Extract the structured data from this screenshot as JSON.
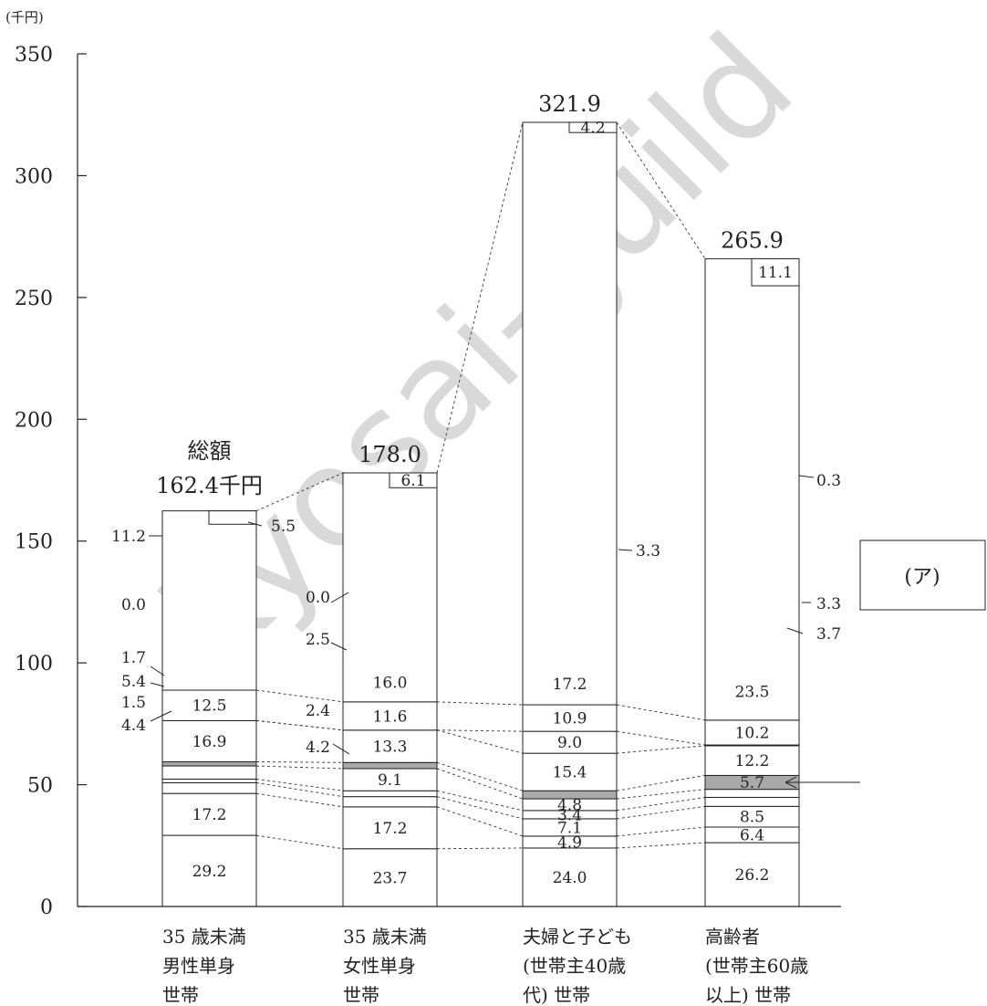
{
  "chart_data": {
    "type": "bar",
    "stacked": true,
    "y_unit_label": "(千円)",
    "ylim": [
      0,
      350
    ],
    "yticks": [
      0,
      50,
      100,
      150,
      200,
      250,
      300,
      350
    ],
    "grid": false,
    "categories": [
      [
        "35 歳未満",
        "男性単身",
        "世帯"
      ],
      [
        "35 歳未満",
        "女性単身",
        "世帯"
      ],
      [
        "夫婦と子ども",
        "(世帯主40歳",
        "代) 世帯"
      ],
      [
        "高齢者",
        "(世帯主60歳",
        "以上) 世帯"
      ]
    ],
    "totals": [
      162.4,
      178.0,
      321.9,
      265.9
    ],
    "total_labels": [
      "162.4千円",
      "178.0",
      "321.9",
      "265.9"
    ],
    "total_prefix": "総額",
    "segment_labels": [
      [
        "29.2",
        "17.2",
        "4.4",
        "1.5",
        "5.4",
        "1.7",
        "16.9",
        "0.0",
        "12.5",
        "11.2",
        "5.5"
      ],
      [
        "23.7",
        "17.2",
        "4.2",
        "2.4",
        "9.1",
        "2.5",
        "13.3",
        "0.0",
        "11.6",
        "16.0",
        "6.1"
      ],
      [
        "24.0",
        "4.9",
        "7.1",
        "3.4",
        "4.8",
        "3.3",
        "15.4",
        "9.0",
        "10.9",
        "17.2",
        "4.2"
      ],
      [
        "26.2",
        "6.4",
        "8.5",
        "3.7",
        "3.3",
        "5.7",
        "12.2",
        "0.3",
        "10.2",
        "23.5",
        "11.1"
      ]
    ],
    "highlight_segment_index": 5,
    "callout_label": "(ア)"
  },
  "watermark": "kyosai-guild",
  "colors": {
    "highlight_fill": "#a9a9a9",
    "bar_fill": "#ffffff",
    "stroke": "#222222"
  }
}
